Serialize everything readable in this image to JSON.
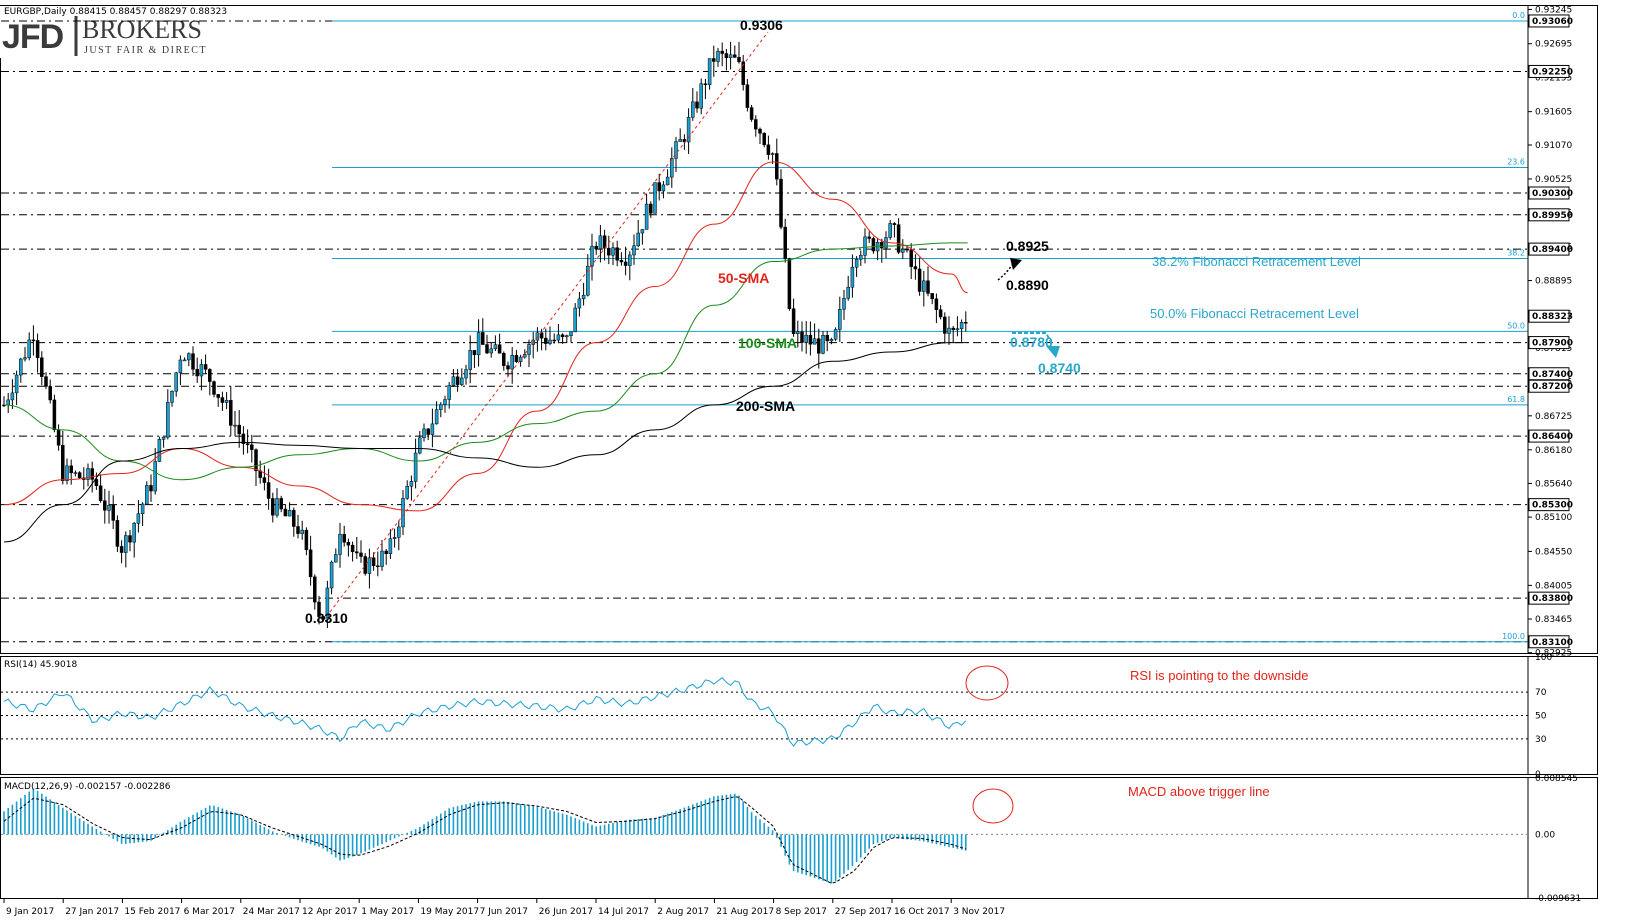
{
  "header": {
    "symbol_line": "EURGBP,Daily  0.88415 0.88457 0.88297 0.88323",
    "logo": {
      "jfd": "JFD",
      "brokers": "BROKERS",
      "tagline": "JUST FAIR & DIRECT"
    }
  },
  "colors": {
    "candle": "#1a9fd1",
    "fib": "#1a9fd1",
    "sma50": "#e2231a",
    "sma100": "#1a8c1a",
    "sma200": "#000000",
    "annot_blue": "#2aa6c9",
    "note_red": "#e2231a"
  },
  "price_axis": {
    "ticks": [
      "0.93245",
      "0.92695",
      "0.92155",
      "0.91605",
      "0.91070",
      "0.90525",
      "0.89985",
      "0.89445",
      "0.88895",
      "0.88355",
      "0.87815",
      "0.87275",
      "0.86725",
      "0.86180",
      "0.85640",
      "0.85100",
      "0.84550",
      "0.84005",
      "0.83465",
      "0.82925"
    ],
    "boxed": [
      {
        "label": "0.93060",
        "value": 0.9306
      },
      {
        "label": "0.92250",
        "value": 0.9225
      },
      {
        "label": "0.90300",
        "value": 0.903
      },
      {
        "label": "0.89950",
        "value": 0.8995
      },
      {
        "label": "0.89400",
        "value": 0.894
      },
      {
        "label": "0.88323",
        "value": 0.88323,
        "current": true
      },
      {
        "label": "0.87900",
        "value": 0.879
      },
      {
        "label": "0.87400",
        "value": 0.874
      },
      {
        "label": "0.87200",
        "value": 0.872
      },
      {
        "label": "0.86400",
        "value": 0.864
      },
      {
        "label": "0.85300",
        "value": 0.853
      },
      {
        "label": "0.83800",
        "value": 0.838
      },
      {
        "label": "0.83100",
        "value": 0.831
      }
    ]
  },
  "date_axis": [
    "9 Jan 2017",
    "27 Jan 2017",
    "15 Feb 2017",
    "6 Mar 2017",
    "24 Mar 2017",
    "12 Apr 2017",
    "1 May 2017",
    "19 May 2017",
    "7 Jun 2017",
    "26 Jun 2017",
    "14 Jul 2017",
    "2 Aug 2017",
    "21 Aug 2017",
    "8 Sep 2017",
    "27 Sep 2017",
    "16 Oct 2017",
    "3 Nov 2017"
  ],
  "annotations": {
    "high_label": "0.9306",
    "low_label": "0.8310",
    "r1": "0.8925",
    "r2": "0.8890",
    "s1": "0.8780",
    "s2": "0.8740",
    "sma50": "50-SMA",
    "sma100": "100-SMA",
    "sma200": "200-SMA",
    "fib382_text": "38.2% Fibonacci Retracement Level",
    "fib50_text": "50.0% Fibonacci Retracement Level"
  },
  "fibonacci": [
    {
      "label": "0.0",
      "value": 0.9306
    },
    {
      "label": "23.6",
      "value": 0.9071
    },
    {
      "label": "38.2",
      "value": 0.8925
    },
    {
      "label": "50.0",
      "value": 0.8808
    },
    {
      "label": "61.8",
      "value": 0.869
    },
    {
      "label": "100.0",
      "value": 0.831
    }
  ],
  "rsi": {
    "title": "RSI(14) 45.9018",
    "axis": [
      "100",
      "70",
      "50",
      "30",
      "0"
    ],
    "note": "RSI is pointing to the downside"
  },
  "macd": {
    "title": "MACD(12,26,9) -0.002157 -0.002286",
    "axis": [
      "0.008545",
      "0.00",
      "-0.009631"
    ],
    "note": "MACD above trigger line"
  },
  "chart_data": {
    "type": "candlestick",
    "title": "EURGBP,Daily",
    "ylim": [
      0.8292,
      0.933
    ],
    "horizontal_levels": [
      0.9306,
      0.9225,
      0.903,
      0.8995,
      0.894,
      0.879,
      0.874,
      0.872,
      0.864,
      0.853,
      0.838,
      0.831
    ],
    "close_path": [
      [
        "9 Jan 2017",
        0.869
      ],
      [
        "18 Jan 2017",
        0.881
      ],
      [
        "27 Jan 2017",
        0.858
      ],
      [
        "6 Feb 2017",
        0.857
      ],
      [
        "15 Feb 2017",
        0.846
      ],
      [
        "24 Feb 2017",
        0.856
      ],
      [
        "6 Mar 2017",
        0.878
      ],
      [
        "15 Mar 2017",
        0.873
      ],
      [
        "24 Mar 2017",
        0.864
      ],
      [
        "3 Apr 2017",
        0.853
      ],
      [
        "12 Apr 2017",
        0.849
      ],
      [
        "19 Apr 2017",
        0.834
      ],
      [
        "25 Apr 2017",
        0.85
      ],
      [
        "1 May 2017",
        0.843
      ],
      [
        "10 May 2017",
        0.845
      ],
      [
        "19 May 2017",
        0.862
      ],
      [
        "29 May 2017",
        0.872
      ],
      [
        "7 Jun 2017",
        0.879
      ],
      [
        "16 Jun 2017",
        0.876
      ],
      [
        "26 Jun 2017",
        0.88
      ],
      [
        "5 Jul 2017",
        0.879
      ],
      [
        "14 Jul 2017",
        0.895
      ],
      [
        "24 Jul 2017",
        0.893
      ],
      [
        "2 Aug 2017",
        0.903
      ],
      [
        "11 Aug 2017",
        0.912
      ],
      [
        "21 Aug 2017",
        0.925
      ],
      [
        "28 Aug 2017",
        0.924
      ],
      [
        "1 Sep 2017",
        0.916
      ],
      [
        "8 Sep 2017",
        0.909
      ],
      [
        "14 Sep 2017",
        0.88
      ],
      [
        "27 Sep 2017",
        0.878
      ],
      [
        "4 Oct 2017",
        0.894
      ],
      [
        "10 Oct 2017",
        0.895
      ],
      [
        "16 Oct 2017",
        0.897
      ],
      [
        "25 Oct 2017",
        0.888
      ],
      [
        "3 Nov 2017",
        0.88
      ],
      [
        "8 Nov 2017",
        0.8832
      ]
    ],
    "sma50": [
      [
        "9 Jan 2017",
        0.853
      ],
      [
        "27 Jan 2017",
        0.857
      ],
      [
        "15 Feb 2017",
        0.858
      ],
      [
        "6 Mar 2017",
        0.862
      ],
      [
        "24 Mar 2017",
        0.859
      ],
      [
        "12 Apr 2017",
        0.856
      ],
      [
        "1 May 2017",
        0.853
      ],
      [
        "19 May 2017",
        0.852
      ],
      [
        "7 Jun 2017",
        0.858
      ],
      [
        "26 Jun 2017",
        0.868
      ],
      [
        "14 Jul 2017",
        0.879
      ],
      [
        "2 Aug 2017",
        0.888
      ],
      [
        "21 Aug 2017",
        0.898
      ],
      [
        "8 Sep 2017",
        0.908
      ],
      [
        "27 Sep 2017",
        0.902
      ],
      [
        "16 Oct 2017",
        0.895
      ],
      [
        "3 Nov 2017",
        0.89
      ],
      [
        "8 Nov 2017",
        0.887
      ]
    ],
    "sma100": [
      [
        "9 Jan 2017",
        0.869
      ],
      [
        "27 Jan 2017",
        0.865
      ],
      [
        "15 Feb 2017",
        0.86
      ],
      [
        "6 Mar 2017",
        0.857
      ],
      [
        "24 Mar 2017",
        0.859
      ],
      [
        "12 Apr 2017",
        0.861
      ],
      [
        "1 May 2017",
        0.862
      ],
      [
        "19 May 2017",
        0.86
      ],
      [
        "7 Jun 2017",
        0.863
      ],
      [
        "26 Jun 2017",
        0.866
      ],
      [
        "14 Jul 2017",
        0.868
      ],
      [
        "2 Aug 2017",
        0.874
      ],
      [
        "21 Aug 2017",
        0.885
      ],
      [
        "8 Sep 2017",
        0.892
      ],
      [
        "27 Sep 2017",
        0.894
      ],
      [
        "16 Oct 2017",
        0.8945
      ],
      [
        "3 Nov 2017",
        0.895
      ],
      [
        "8 Nov 2017",
        0.895
      ]
    ],
    "sma200": [
      [
        "9 Jan 2017",
        0.847
      ],
      [
        "27 Jan 2017",
        0.853
      ],
      [
        "15 Feb 2017",
        0.86
      ],
      [
        "6 Mar 2017",
        0.862
      ],
      [
        "24 Mar 2017",
        0.863
      ],
      [
        "12 Apr 2017",
        0.8625
      ],
      [
        "1 May 2017",
        0.862
      ],
      [
        "19 May 2017",
        0.862
      ],
      [
        "7 Jun 2017",
        0.8605
      ],
      [
        "26 Jun 2017",
        0.859
      ],
      [
        "14 Jul 2017",
        0.861
      ],
      [
        "2 Aug 2017",
        0.865
      ],
      [
        "21 Aug 2017",
        0.869
      ],
      [
        "8 Sep 2017",
        0.872
      ],
      [
        "27 Sep 2017",
        0.876
      ],
      [
        "16 Oct 2017",
        0.8775
      ],
      [
        "3 Nov 2017",
        0.879
      ],
      [
        "8 Nov 2017",
        0.879
      ]
    ],
    "rsi14": [
      62,
      55,
      70,
      45,
      52,
      48,
      60,
      72,
      58,
      50,
      44,
      38,
      30,
      45,
      38,
      52,
      58,
      62,
      60,
      58,
      55,
      64,
      60,
      66,
      72,
      80,
      78,
      62,
      52,
      26,
      30,
      44,
      58,
      52,
      54,
      40,
      47,
      45.9
    ],
    "rsi_levels": [
      70,
      50,
      30
    ],
    "macd_hist": [
      0.0035,
      0.007,
      0.004,
      0.001,
      -0.0015,
      -0.001,
      0.002,
      0.0045,
      0.003,
      0.0005,
      -0.001,
      -0.002,
      -0.004,
      -0.003,
      -0.001,
      0.001,
      0.004,
      0.005,
      0.005,
      0.0042,
      0.003,
      0.0012,
      0.0022,
      0.0025,
      0.004,
      0.0058,
      0.0062,
      0.0035,
      0.0005,
      -0.0055,
      -0.0075,
      -0.0045,
      -0.0015,
      -0.0005,
      -0.001,
      -0.002,
      -0.0025,
      -0.0022
    ],
    "macd_signal": [
      0.002,
      0.0055,
      0.0045,
      0.0015,
      -0.0005,
      -0.0008,
      0.001,
      0.0035,
      0.003,
      0.001,
      -0.0004,
      -0.0015,
      -0.003,
      -0.0032,
      -0.0018,
      0.0002,
      0.003,
      0.0045,
      0.0048,
      0.0043,
      0.0035,
      0.0018,
      0.002,
      0.0024,
      0.0035,
      0.005,
      0.0058,
      0.0042,
      0.0012,
      -0.0045,
      -0.0075,
      -0.0055,
      -0.002,
      -0.0005,
      -0.0006,
      -0.0015,
      -0.0023,
      -0.0023
    ],
    "macd_ylim": [
      -0.009631,
      0.008545
    ]
  }
}
